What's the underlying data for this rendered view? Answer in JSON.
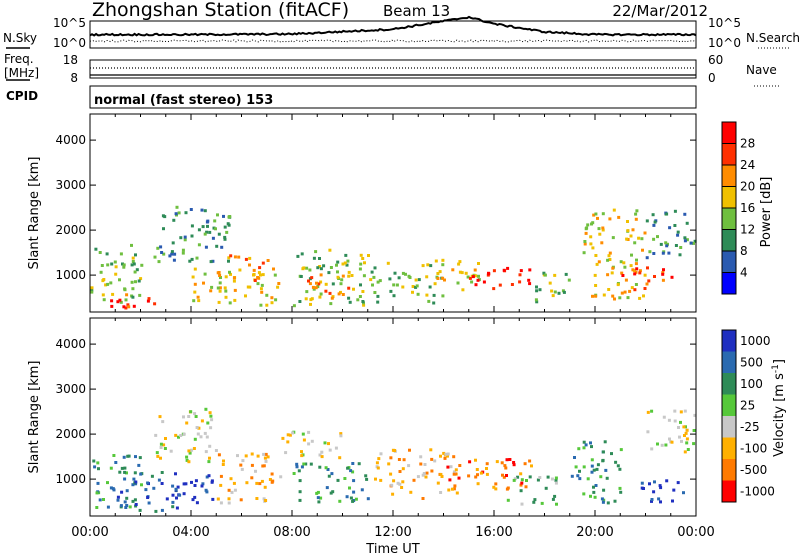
{
  "header": {
    "title": "Zhongshan Station (fitACF)",
    "beam": "Beam 13",
    "date": "22/Mar/2012"
  },
  "left_labels": {
    "nsky": "N.Sky",
    "freq_line1": "Freq.",
    "freq_line2": "[MHz]",
    "cpid": "CPID"
  },
  "right_labels": {
    "nsearch": "N.Search",
    "nave": "Nave"
  },
  "noise_panel": {
    "left_ticks": [
      "10^5",
      "10^0"
    ],
    "right_ticks": [
      "10^5",
      "10^0"
    ]
  },
  "freq_panel": {
    "left_ticks": [
      "18",
      "8"
    ],
    "right_ticks": [
      "60",
      "0"
    ]
  },
  "cpid_text": "normal (fast stereo) 153",
  "x_axis": {
    "label": "Time UT",
    "ticks": [
      "00:00",
      "04:00",
      "08:00",
      "12:00",
      "16:00",
      "20:00",
      "00:00"
    ]
  },
  "y_axis": {
    "label": "Slant Range [km]",
    "ticks": [
      "1000",
      "2000",
      "3000",
      "4000"
    ]
  },
  "power_colorbar": {
    "label": "Power [dB]",
    "ticks": [
      "4",
      "8",
      "12",
      "16",
      "20",
      "24",
      "28"
    ],
    "colors": [
      "#0000ff",
      "#2a5ab0",
      "#2e8b57",
      "#6fbf3f",
      "#f0c000",
      "#ff8c00",
      "#ff3000",
      "#ff0000"
    ]
  },
  "velocity_colorbar": {
    "label_main": "Velocity [m s",
    "label_sup": "-1",
    "label_end": "]",
    "ticks": [
      "1000",
      "500",
      "100",
      "25",
      "-25",
      "-100",
      "-500",
      "-1000"
    ],
    "colors": [
      "#1f2fc0",
      "#2a6ab0",
      "#2e8b57",
      "#56c83a",
      "#c8c8c8",
      "#ffb000",
      "#ff7a00",
      "#ff0000"
    ]
  },
  "chart_data": {
    "type": "heatmap",
    "x_range_hours": [
      0,
      24
    ],
    "y_range_km": [
      180,
      4580
    ],
    "power_clusters": [
      {
        "t": [
          0,
          2
        ],
        "r": [
          300,
          1700
        ],
        "level": 3
      },
      {
        "t": [
          0.5,
          3
        ],
        "r": [
          300,
          600
        ],
        "level": 6
      },
      {
        "t": [
          2.5,
          5.5
        ],
        "r": [
          1300,
          2600
        ],
        "level": 2
      },
      {
        "t": [
          4,
          7.5
        ],
        "r": [
          350,
          1200
        ],
        "level": 4
      },
      {
        "t": [
          5,
          7
        ],
        "r": [
          900,
          1500
        ],
        "level": 5
      },
      {
        "t": [
          8,
          11
        ],
        "r": [
          350,
          1600
        ],
        "level": 3
      },
      {
        "t": [
          8.5,
          10.5
        ],
        "r": [
          500,
          1100
        ],
        "level": 5
      },
      {
        "t": [
          11,
          14
        ],
        "r": [
          400,
          1300
        ],
        "level": 3
      },
      {
        "t": [
          13.5,
          15.5
        ],
        "r": [
          700,
          1400
        ],
        "level": 4
      },
      {
        "t": [
          15,
          17.5
        ],
        "r": [
          700,
          1200
        ],
        "level": 7
      },
      {
        "t": [
          17.5,
          19
        ],
        "r": [
          400,
          1100
        ],
        "level": 3
      },
      {
        "t": [
          19.5,
          22
        ],
        "r": [
          500,
          2500
        ],
        "level": 4
      },
      {
        "t": [
          21,
          23
        ],
        "r": [
          700,
          1200
        ],
        "level": 6
      },
      {
        "t": [
          22,
          24
        ],
        "r": [
          1400,
          2500
        ],
        "level": 2
      }
    ],
    "velocity_clusters": [
      {
        "t": [
          0,
          2
        ],
        "r": [
          400,
          1600
        ],
        "level": 2
      },
      {
        "t": [
          1,
          3.5
        ],
        "r": [
          300,
          1200
        ],
        "level": 1
      },
      {
        "t": [
          2.5,
          5
        ],
        "r": [
          1400,
          2600
        ],
        "level": 4
      },
      {
        "t": [
          3,
          5
        ],
        "r": [
          500,
          1200
        ],
        "level": 0
      },
      {
        "t": [
          5,
          7.5
        ],
        "r": [
          500,
          1600
        ],
        "level": 5
      },
      {
        "t": [
          7.5,
          10
        ],
        "r": [
          1500,
          2100
        ],
        "level": 4
      },
      {
        "t": [
          8,
          11
        ],
        "r": [
          500,
          1400
        ],
        "level": 2
      },
      {
        "t": [
          11,
          14.5
        ],
        "r": [
          600,
          1700
        ],
        "level": 5
      },
      {
        "t": [
          14,
          17.5
        ],
        "r": [
          800,
          1500
        ],
        "level": 6
      },
      {
        "t": [
          16.5,
          18.5
        ],
        "r": [
          400,
          1100
        ],
        "level": 3
      },
      {
        "t": [
          19,
          21
        ],
        "r": [
          500,
          1900
        ],
        "level": 2
      },
      {
        "t": [
          21.5,
          23.5
        ],
        "r": [
          500,
          1000
        ],
        "level": 0
      },
      {
        "t": [
          22,
          24
        ],
        "r": [
          1600,
          2600
        ],
        "level": 4
      }
    ],
    "noise_sky": {
      "t": [
        0,
        4,
        8,
        12,
        14,
        15,
        16,
        18,
        20,
        24
      ],
      "level": [
        0.2,
        0.2,
        0.22,
        0.4,
        0.7,
        0.85,
        0.6,
        0.3,
        0.2,
        0.2
      ]
    },
    "freq": {
      "t": [
        0,
        24
      ],
      "value_mhz": 12
    },
    "nave": {
      "t": [
        0,
        24
      ],
      "value": 30
    }
  }
}
